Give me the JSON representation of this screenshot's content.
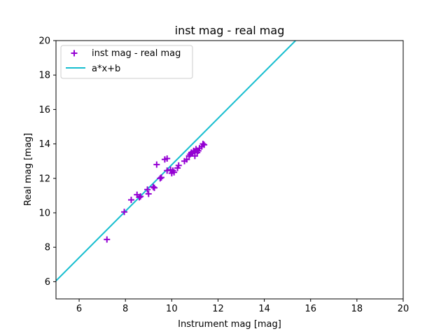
{
  "chart_data": {
    "type": "scatter",
    "title": "inst mag - real mag",
    "xlabel": "Instrument mag [mag]",
    "ylabel": "Real mag [mag]",
    "xlim": [
      5,
      20
    ],
    "ylim": [
      5,
      20
    ],
    "xticks": [
      6,
      8,
      10,
      12,
      14,
      16,
      18,
      20
    ],
    "yticks": [
      6,
      8,
      10,
      12,
      14,
      16,
      18,
      20
    ],
    "grid": false,
    "legend": "top-left",
    "series": [
      {
        "name": "inst mag - real mag",
        "kind": "scatter",
        "marker": "plus",
        "color": "#9400d3",
        "points": [
          [
            7.2,
            8.45
          ],
          [
            7.95,
            10.05
          ],
          [
            8.25,
            10.75
          ],
          [
            8.5,
            11.05
          ],
          [
            8.6,
            10.9
          ],
          [
            8.65,
            10.95
          ],
          [
            8.95,
            11.35
          ],
          [
            9.0,
            11.1
          ],
          [
            9.2,
            11.5
          ],
          [
            9.25,
            11.45
          ],
          [
            9.35,
            12.8
          ],
          [
            9.5,
            12.0
          ],
          [
            9.55,
            12.05
          ],
          [
            9.7,
            13.1
          ],
          [
            9.8,
            13.15
          ],
          [
            9.8,
            12.45
          ],
          [
            9.95,
            12.5
          ],
          [
            10.0,
            12.3
          ],
          [
            10.05,
            12.45
          ],
          [
            10.1,
            12.35
          ],
          [
            10.25,
            12.6
          ],
          [
            10.3,
            12.75
          ],
          [
            10.55,
            13.0
          ],
          [
            10.65,
            13.1
          ],
          [
            10.75,
            13.3
          ],
          [
            10.8,
            13.4
          ],
          [
            10.85,
            13.5
          ],
          [
            10.9,
            13.45
          ],
          [
            10.95,
            13.6
          ],
          [
            11.0,
            13.3
          ],
          [
            11.0,
            13.55
          ],
          [
            11.05,
            13.7
          ],
          [
            11.1,
            13.5
          ],
          [
            11.15,
            13.6
          ],
          [
            11.2,
            13.75
          ],
          [
            11.3,
            13.85
          ],
          [
            11.35,
            14.0
          ],
          [
            11.4,
            13.95
          ]
        ]
      },
      {
        "name": "a*x+b",
        "kind": "line",
        "color": "#17becf",
        "points": [
          [
            5,
            6.05
          ],
          [
            15.35,
            20
          ]
        ]
      }
    ]
  }
}
